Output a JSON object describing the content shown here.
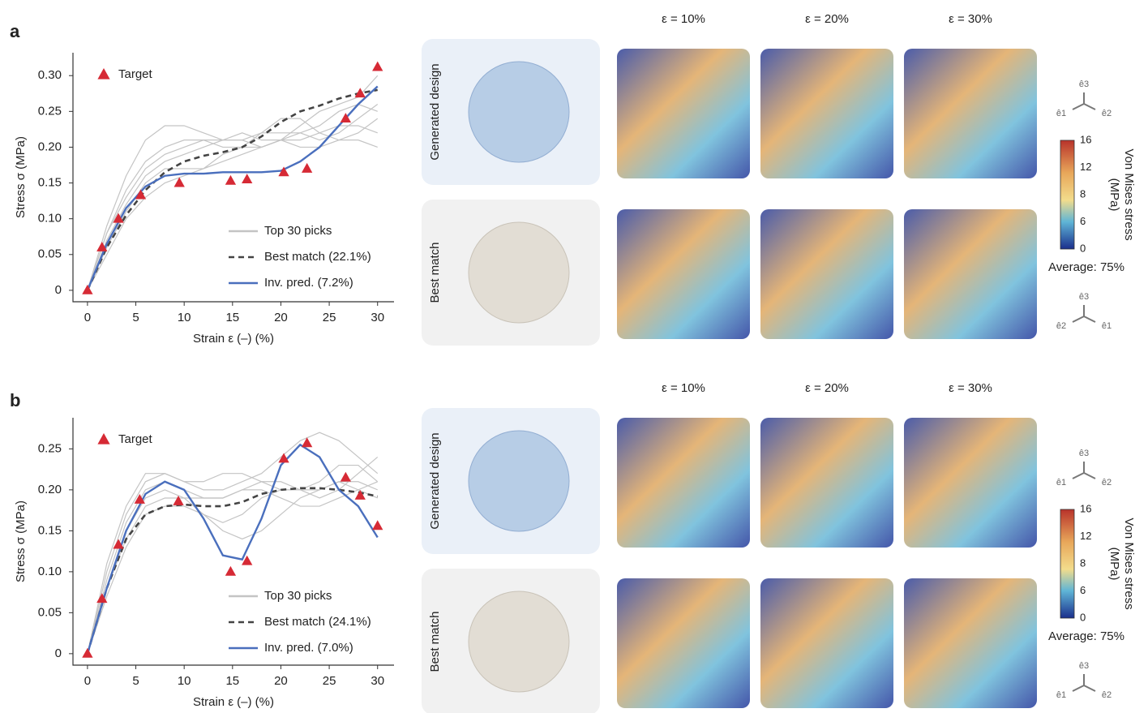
{
  "chart_data": [
    {
      "type": "line",
      "xlabel": "Strain ε (–) (%)",
      "ylabel": "Stress σ (MPa)",
      "xlim": [
        -1.5,
        31.7
      ],
      "ylim": [
        -0.016,
        0.332
      ],
      "xticks": [
        0,
        5,
        10,
        15,
        20,
        25,
        30
      ],
      "yticks": [
        0,
        0.05,
        {
          "value": 0.1,
          "label": "0.10"
        },
        0.15,
        {
          "value": 0.2,
          "label": "0.20"
        },
        0.25,
        {
          "value": 0.3,
          "label": "0.30"
        }
      ],
      "x": [
        0,
        2,
        4,
        6,
        8,
        10,
        12,
        14,
        16,
        18,
        20,
        22,
        24,
        26,
        28,
        30
      ],
      "series": [
        {
          "name": "Top 30 picks",
          "color": "#c4c4c4",
          "values": [
            [
              0,
              0.08,
              0.14,
              0.18,
              0.2,
              0.21,
              0.21,
              0.2,
              0.2,
              0.2,
              0.21,
              0.21,
              0.22,
              0.23,
              0.23,
              0.22
            ],
            [
              0,
              0.07,
              0.12,
              0.16,
              0.18,
              0.19,
              0.2,
              0.21,
              0.21,
              0.2,
              0.21,
              0.23,
              0.25,
              0.26,
              0.27,
              0.3
            ],
            [
              0,
              0.06,
              0.11,
              0.15,
              0.17,
              0.17,
              0.17,
              0.18,
              0.19,
              0.2,
              0.21,
              0.2,
              0.2,
              0.21,
              0.21,
              0.2
            ],
            [
              0,
              0.09,
              0.16,
              0.21,
              0.23,
              0.23,
              0.22,
              0.21,
              0.21,
              0.22,
              0.24,
              0.24,
              0.22,
              0.21,
              0.22,
              0.24
            ],
            [
              0,
              0.05,
              0.1,
              0.13,
              0.15,
              0.16,
              0.17,
              0.19,
              0.2,
              0.22,
              0.22,
              0.22,
              0.23,
              0.25,
              0.26,
              0.25
            ],
            [
              0,
              0.08,
              0.13,
              0.17,
              0.19,
              0.2,
              0.21,
              0.21,
              0.22,
              0.21,
              0.21,
              0.22,
              0.21,
              0.22,
              0.24,
              0.26
            ]
          ]
        },
        {
          "name": "Best match (22.1%)",
          "color": "#444444",
          "dash": true,
          "values": [
            0,
            0.06,
            0.105,
            0.14,
            0.165,
            0.18,
            0.188,
            0.193,
            0.2,
            0.215,
            0.235,
            0.25,
            0.258,
            0.268,
            0.275,
            0.28
          ]
        },
        {
          "name": "Inv. pred. (7.2%)",
          "color": "#4a6fbd",
          "values": [
            0,
            0.065,
            0.115,
            0.145,
            0.16,
            0.163,
            0.163,
            0.165,
            0.165,
            0.165,
            0.167,
            0.18,
            0.2,
            0.23,
            0.26,
            0.285
          ]
        },
        {
          "name": "Target",
          "color": "#d62a35",
          "marker": "triangle",
          "x": [
            0,
            1.5,
            3.2,
            5.5,
            9.5,
            14.8,
            16.5,
            20.3,
            22.7,
            26.7,
            28.2,
            30
          ],
          "values": [
            0,
            0.06,
            0.1,
            0.133,
            0.15,
            0.153,
            0.155,
            0.165,
            0.17,
            0.24,
            0.275,
            0.312
          ]
        }
      ]
    },
    {
      "type": "line",
      "xlabel": "Strain ε (–) (%)",
      "ylabel": "Stress σ (MPa)",
      "xlim": [
        -1.5,
        31.7
      ],
      "ylim": [
        -0.014,
        0.288
      ],
      "xticks": [
        0,
        5,
        10,
        15,
        20,
        25,
        30
      ],
      "yticks": [
        0,
        0.05,
        {
          "value": 0.1,
          "label": "0.10"
        },
        0.15,
        {
          "value": 0.2,
          "label": "0.20"
        },
        0.25
      ],
      "x": [
        0,
        2,
        4,
        6,
        8,
        10,
        12,
        14,
        16,
        18,
        20,
        22,
        24,
        26,
        28,
        30
      ],
      "series": [
        {
          "name": "Top 30 picks",
          "color": "#c4c4c4",
          "values": [
            [
              0,
              0.1,
              0.17,
              0.21,
              0.22,
              0.21,
              0.2,
              0.2,
              0.21,
              0.22,
              0.24,
              0.26,
              0.27,
              0.26,
              0.24,
              0.22
            ],
            [
              0,
              0.08,
              0.15,
              0.19,
              0.2,
              0.19,
              0.17,
              0.16,
              0.17,
              0.19,
              0.2,
              0.2,
              0.2,
              0.21,
              0.21,
              0.2
            ],
            [
              0,
              0.09,
              0.16,
              0.2,
              0.21,
              0.2,
              0.19,
              0.19,
              0.2,
              0.21,
              0.21,
              0.2,
              0.19,
              0.2,
              0.22,
              0.24
            ],
            [
              0,
              0.07,
              0.13,
              0.17,
              0.18,
              0.18,
              0.17,
              0.15,
              0.14,
              0.15,
              0.17,
              0.19,
              0.2,
              0.21,
              0.2,
              0.19
            ],
            [
              0,
              0.11,
              0.18,
              0.22,
              0.22,
              0.21,
              0.21,
              0.22,
              0.22,
              0.21,
              0.2,
              0.2,
              0.21,
              0.23,
              0.23,
              0.21
            ],
            [
              0,
              0.08,
              0.14,
              0.18,
              0.19,
              0.19,
              0.19,
              0.19,
              0.2,
              0.2,
              0.19,
              0.18,
              0.18,
              0.19,
              0.2,
              0.21
            ]
          ]
        },
        {
          "name": "Best match (24.1%)",
          "color": "#444444",
          "dash": true,
          "values": [
            0,
            0.08,
            0.14,
            0.17,
            0.18,
            0.182,
            0.18,
            0.18,
            0.185,
            0.195,
            0.2,
            0.202,
            0.202,
            0.2,
            0.197,
            0.192
          ]
        },
        {
          "name": "Inv. pred. (7.0%)",
          "color": "#4a6fbd",
          "values": [
            0,
            0.08,
            0.15,
            0.195,
            0.21,
            0.2,
            0.165,
            0.12,
            0.115,
            0.165,
            0.23,
            0.255,
            0.24,
            0.2,
            0.18,
            0.142
          ]
        },
        {
          "name": "Target",
          "color": "#d62a35",
          "marker": "triangle",
          "x": [
            0,
            1.5,
            3.2,
            5.4,
            9.4,
            14.8,
            16.5,
            20.3,
            22.7,
            26.7,
            28.2,
            30
          ],
          "values": [
            0,
            0.067,
            0.133,
            0.188,
            0.186,
            0.1,
            0.113,
            0.238,
            0.257,
            0.215,
            0.193,
            0.156
          ]
        }
      ]
    }
  ],
  "panels": [
    {
      "label": "a",
      "strains": [
        "ε = 10%",
        "ε = 20%",
        "ε = 30%"
      ],
      "rows": [
        "Generated design",
        "Best match"
      ],
      "colorbar": {
        "title": [
          "Von Mises stress",
          "(MPa)"
        ],
        "ticks": [
          "16",
          "12",
          "8",
          "6",
          "0"
        ]
      },
      "average": "Average: 75%",
      "triads": [
        [
          "ê3",
          "ê1",
          "ê2"
        ],
        [
          "ê3",
          "ê2",
          "ê1"
        ]
      ]
    },
    {
      "label": "b",
      "strains": [
        "ε = 10%",
        "ε = 20%",
        "ε = 30%"
      ],
      "rows": [
        "Generated design",
        "Best match"
      ],
      "colorbar": {
        "title": [
          "Von Mises stress",
          "(MPa)"
        ],
        "ticks": [
          "16",
          "12",
          "8",
          "6",
          "0"
        ]
      },
      "average": "Average: 75%",
      "triads": [
        [
          "ê3",
          "ê1",
          "ê2"
        ],
        [
          "ê3",
          "ê1",
          "ê2"
        ]
      ]
    }
  ]
}
